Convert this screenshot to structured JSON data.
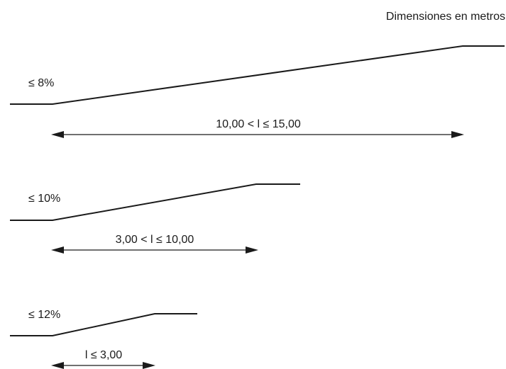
{
  "units_note": "Dimensiones en metros",
  "ramps": [
    {
      "slope_label": "≤ 8%",
      "length_label": "10,00 < l ≤ 15,00"
    },
    {
      "slope_label": "≤ 10%",
      "length_label": "3,00 < l ≤ 10,00"
    },
    {
      "slope_label": "≤ 12%",
      "length_label": "l ≤ 3,00"
    }
  ],
  "colors": {
    "stroke": "#1a1a1a",
    "background": "#ffffff"
  }
}
